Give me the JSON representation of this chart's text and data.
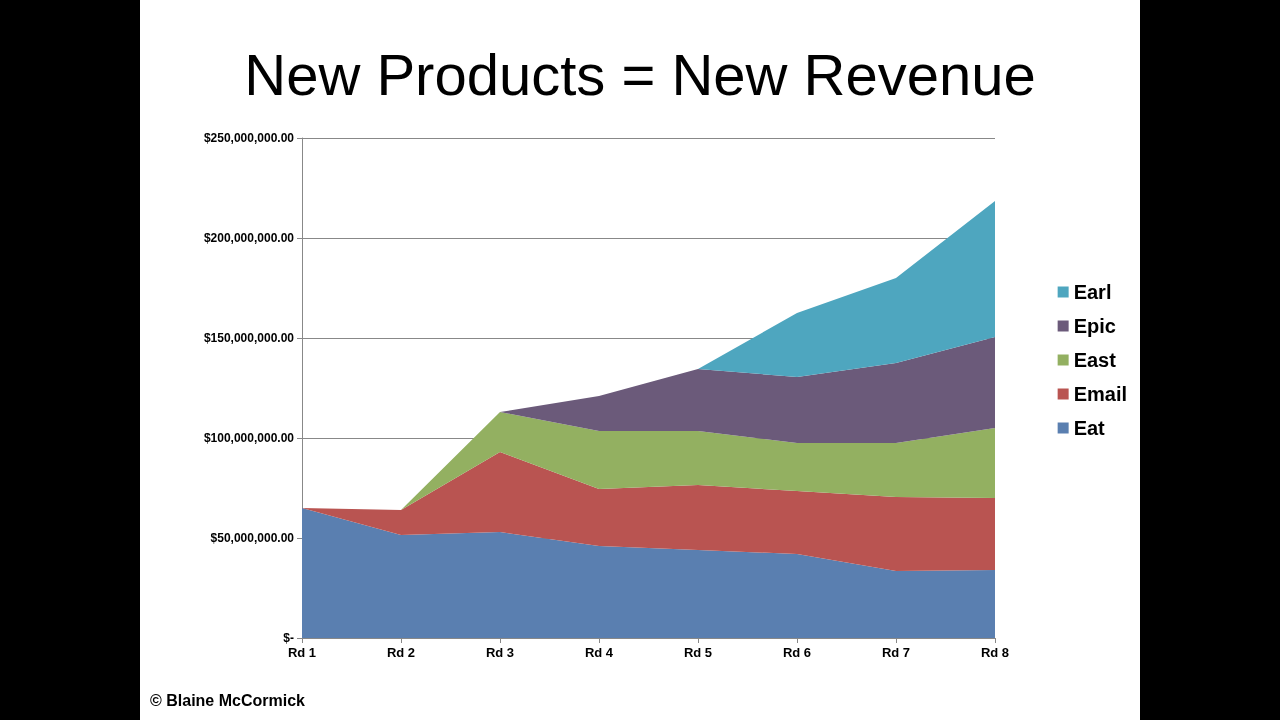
{
  "chart_data": {
    "type": "area",
    "title": "New Products = New Revenue",
    "stacked": true,
    "categories": [
      "Rd 1",
      "Rd 2",
      "Rd 3",
      "Rd 4",
      "Rd 5",
      "Rd 6",
      "Rd 7",
      "Rd 8"
    ],
    "series": [
      {
        "name": "Eat",
        "color": "#5a7fb0",
        "values": [
          65000000,
          51500000,
          53000000,
          46000000,
          44000000,
          42000000,
          33500000,
          34000000
        ]
      },
      {
        "name": "Email",
        "color": "#b95451",
        "values": [
          0,
          12500000,
          40000000,
          28500000,
          32500000,
          31500000,
          37000000,
          36000000
        ]
      },
      {
        "name": "East",
        "color": "#93b061",
        "values": [
          0,
          0,
          20000000,
          29000000,
          27000000,
          24000000,
          27000000,
          35000000
        ]
      },
      {
        "name": "Epic",
        "color": "#6b5a7a",
        "values": [
          0,
          0,
          0,
          17500000,
          31000000,
          33000000,
          40000000,
          45500000
        ]
      },
      {
        "name": "Earl",
        "color": "#4ea6bf",
        "values": [
          0,
          0,
          0,
          0,
          0,
          32000000,
          42500000,
          68000000
        ]
      }
    ],
    "ylim": [
      0,
      250000000
    ],
    "yticks": [
      {
        "value": 0,
        "label": "$-"
      },
      {
        "value": 50000000,
        "label": "$50,000,000.00"
      },
      {
        "value": 100000000,
        "label": "$100,000,000.00"
      },
      {
        "value": 150000000,
        "label": "$150,000,000.00"
      },
      {
        "value": 200000000,
        "label": "$200,000,000.00"
      },
      {
        "value": 250000000,
        "label": "$250,000,000.00"
      }
    ],
    "grid": "y",
    "legend": "right",
    "annotations": [
      "© Blaine McCormick"
    ]
  }
}
